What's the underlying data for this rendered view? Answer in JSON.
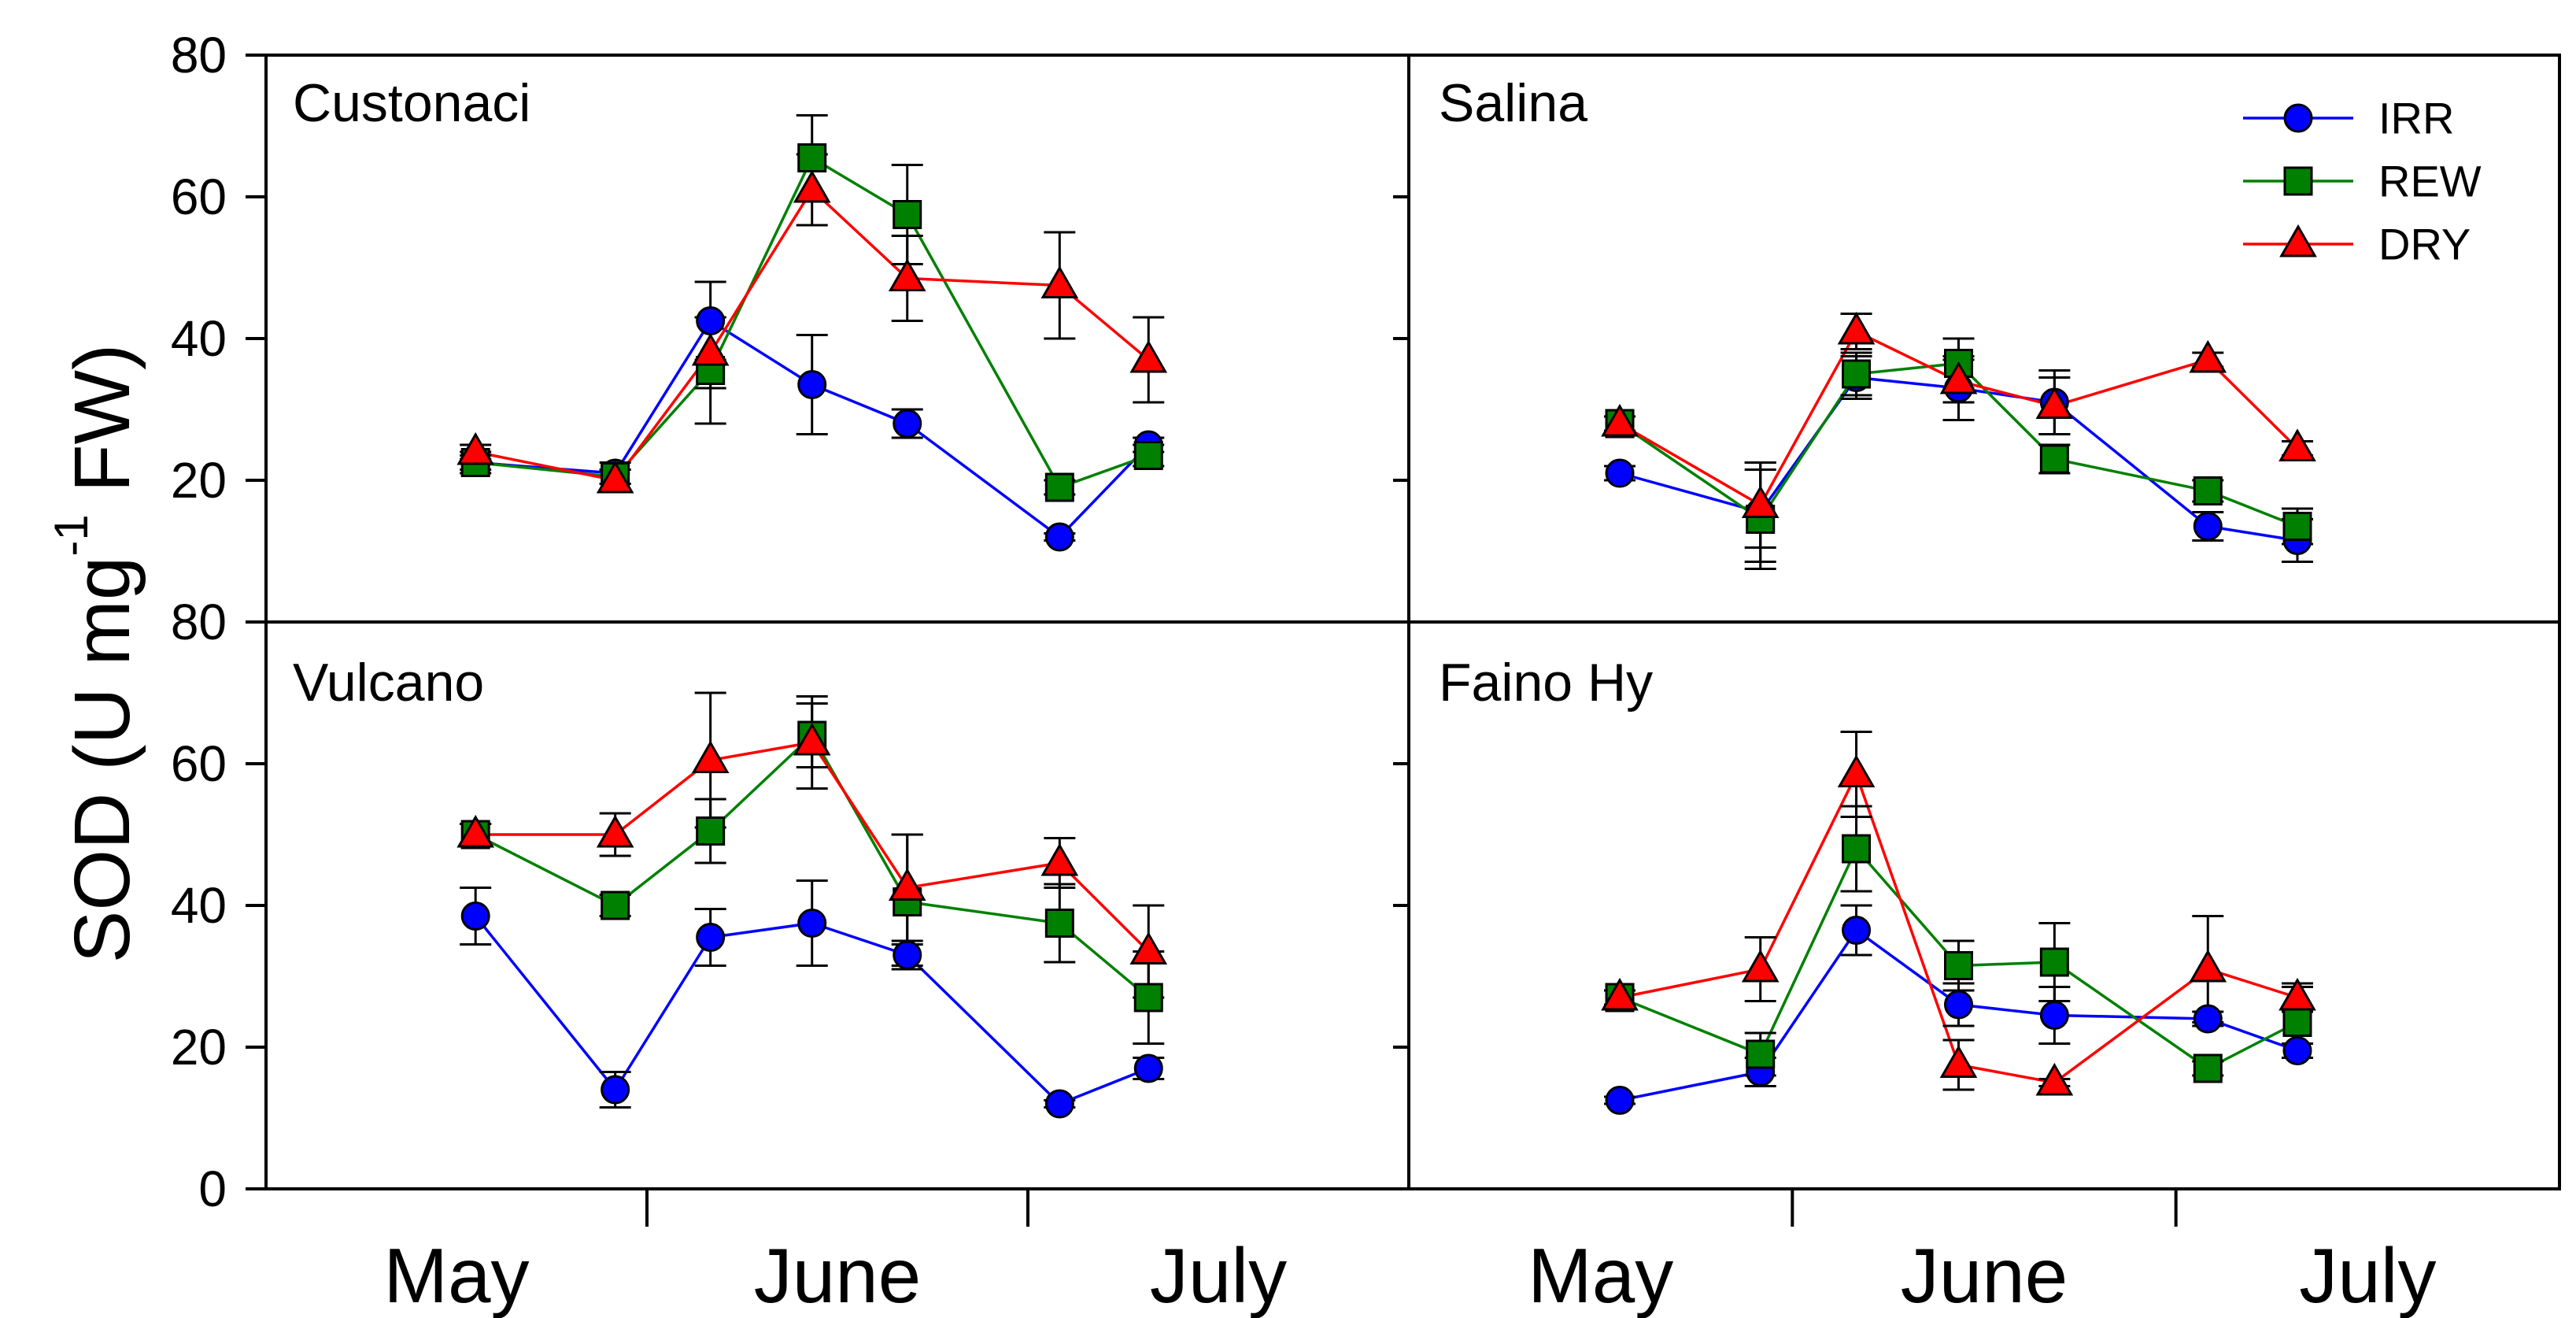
{
  "chart_data": {
    "type": "line",
    "ylabel": "SOD (U mg-1 FW)",
    "ylabel_parts": {
      "main": "SOD (U mg",
      "sup": "-1",
      "tail": " FW)"
    },
    "ylim": [
      0,
      80
    ],
    "yticks": [
      "0",
      "20",
      "40",
      "60",
      "80"
    ],
    "xlim": [
      0,
      9
    ],
    "month_ticks": [
      3,
      6
    ],
    "months": [
      "May",
      "June",
      "July"
    ],
    "legend": [
      {
        "key": "IRR",
        "label": "IRR",
        "color": "#0000ff",
        "marker": "circle"
      },
      {
        "key": "REW",
        "label": "REW",
        "color": "#008000",
        "marker": "square"
      },
      {
        "key": "DRY",
        "label": "DRY",
        "color": "#ff0000",
        "marker": "triangle"
      }
    ],
    "x_positions": [
      1.65,
      2.75,
      3.5,
      4.3,
      5.05,
      6.25,
      6.95
    ],
    "panels": [
      {
        "title": "Custonaci",
        "row": 0,
        "col": 0,
        "series": {
          "IRR": {
            "values": [
              22.5,
              21.0,
              42.5,
              33.5,
              28.0,
              12.0,
              25.0
            ],
            "errors": [
              1.5,
              1.5,
              5.5,
              7.0,
              2.0,
              0.5,
              1.0
            ]
          },
          "REW": {
            "values": [
              22.5,
              20.5,
              35.5,
              65.5,
              57.5,
              19.0,
              23.5
            ],
            "errors": [
              1.0,
              1.0,
              7.5,
              6.0,
              7.0,
              1.0,
              1.5
            ]
          },
          "DRY": {
            "values": [
              24.0,
              20.0,
              38.0,
              61.0,
              48.5,
              47.5,
              37.0
            ],
            "errors": [
              1.0,
              1.5,
              5.0,
              5.0,
              6.0,
              7.5,
              6.0
            ]
          }
        }
      },
      {
        "title": "Salina",
        "row": 0,
        "col": 1,
        "series": {
          "IRR": {
            "values": [
              21.0,
              15.5,
              34.5,
              33.0,
              31.0,
              13.5,
              11.5
            ],
            "errors": [
              1.0,
              7.0,
              3.0,
              4.5,
              4.5,
              2.0,
              3.0
            ]
          },
          "REW": {
            "values": [
              28.0,
              14.5,
              35.0,
              36.5,
              23.0,
              18.5,
              13.5
            ],
            "errors": [
              1.0,
              7.0,
              3.0,
              3.5,
              2.0,
              1.5,
              2.5
            ]
          },
          "DRY": {
            "values": [
              28.0,
              16.5,
              41.0,
              34.0,
              30.5,
              37.0,
              24.5
            ],
            "errors": [
              1.0,
              6.0,
              2.5,
              3.0,
              4.0,
              1.0,
              1.0
            ]
          }
        }
      },
      {
        "title": "Vulcano",
        "row": 1,
        "col": 0,
        "series": {
          "IRR": {
            "values": [
              38.5,
              14.0,
              35.5,
              37.5,
              33.0,
              12.0,
              17.0
            ],
            "errors": [
              4.0,
              2.5,
              4.0,
              6.0,
              1.5,
              0.5,
              1.5
            ]
          },
          "REW": {
            "values": [
              50.0,
              40.0,
              50.5,
              64.0,
              40.5,
              37.5,
              27.0
            ],
            "errors": [
              1.5,
              1.5,
              4.5,
              4.5,
              9.5,
              5.5,
              6.5
            ]
          },
          "DRY": {
            "values": [
              50.0,
              50.0,
              60.5,
              63.0,
              42.5,
              46.0,
              33.5
            ],
            "errors": [
              1.5,
              3.0,
              9.5,
              6.5,
              7.5,
              3.5,
              6.5
            ]
          }
        }
      },
      {
        "title": "Faino Hy",
        "row": 1,
        "col": 1,
        "series": {
          "IRR": {
            "values": [
              12.5,
              16.5,
              36.5,
              26.0,
              24.5,
              24.0,
              19.5
            ],
            "errors": [
              0.5,
              2.0,
              3.5,
              3.0,
              4.0,
              1.0,
              1.0
            ]
          },
          "REW": {
            "values": [
              27.0,
              19.0,
              48.0,
              31.5,
              32.0,
              17.0,
              23.5
            ],
            "errors": [
              1.0,
              3.0,
              6.0,
              3.5,
              5.5,
              1.0,
              5.0
            ]
          },
          "DRY": {
            "values": [
              27.0,
              31.0,
              58.5,
              17.5,
              15.0,
              31.0,
              27.0
            ],
            "errors": [
              1.0,
              4.5,
              6.0,
              3.5,
              0.5,
              7.5,
              2.0
            ]
          }
        }
      }
    ]
  }
}
